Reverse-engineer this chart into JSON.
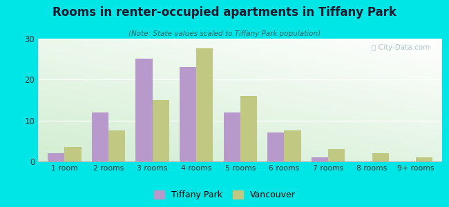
{
  "title": "Rooms in renter-occupied apartments in Tiffany Park",
  "subtitle": "(Note: State values scaled to Tiffany Park population)",
  "categories": [
    "1 room",
    "2 rooms",
    "3 rooms",
    "4 rooms",
    "5 rooms",
    "6 rooms",
    "7 rooms",
    "8 rooms",
    "9+ rooms"
  ],
  "tiffany_park": [
    2,
    12,
    25,
    23,
    12,
    7,
    1,
    0,
    0
  ],
  "vancouver": [
    3.5,
    7.5,
    15,
    27.5,
    16,
    7.5,
    3,
    2,
    1
  ],
  "tiffany_color": "#b899cc",
  "vancouver_color": "#c0c882",
  "background_outer": "#00e5e5",
  "ylim": [
    0,
    30
  ],
  "yticks": [
    0,
    10,
    20,
    30
  ],
  "bar_width": 0.38,
  "figsize": [
    6.5,
    3.0
  ],
  "dpi": 100
}
